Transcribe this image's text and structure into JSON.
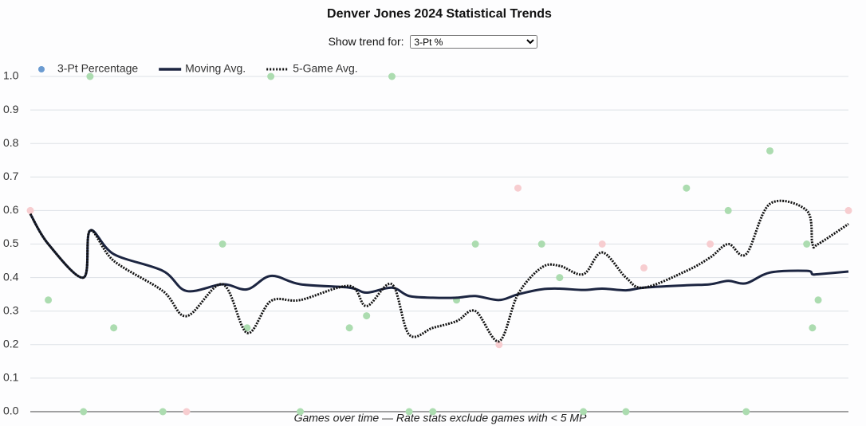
{
  "controls": {
    "label": "Show trend for:",
    "options": [
      "3-Pt %"
    ]
  },
  "chart_data": {
    "type": "line",
    "title": "Denver Jones 2024 Statistical Trends",
    "x_label": "Games over time — Rate stats exclude games with < 5 MP",
    "x": [
      0,
      2.2,
      6.5,
      7.3,
      10.2,
      16.2,
      19.1,
      23.5,
      26.5,
      29.4,
      33.0,
      39.0,
      41.1,
      44.2,
      46.3,
      49.2,
      52.1,
      54.4,
      57.3,
      59.6,
      62.5,
      64.7,
      67.6,
      69.9,
      72.8,
      75.0,
      80.2,
      83.1,
      85.3,
      87.5,
      90.4,
      94.9,
      95.6,
      96.3,
      100
    ],
    "xlim": [
      0,
      100
    ],
    "ylim": [
      0,
      1
    ],
    "yticks": [
      {
        "value": 0,
        "label": "0.0"
      },
      0.1,
      0.2,
      0.3,
      0.4,
      0.5,
      0.6,
      0.7,
      0.8,
      0.9,
      {
        "value": 1,
        "label": "1.0"
      }
    ],
    "grid": true,
    "legend": "top-left",
    "series": [
      {
        "name": "3-Pt Percentage",
        "mark": "scatter",
        "color": "#6b9bd1",
        "values": [
          0.6,
          0.333,
          0,
          1,
          0.25,
          0,
          0,
          0.5,
          0.25,
          1,
          0,
          0.25,
          0.286,
          1,
          0,
          0,
          0.333,
          0.5,
          0.2,
          0.667,
          0.5,
          0.4,
          0,
          0.5,
          0,
          0.429,
          0.667,
          0.5,
          0.6,
          0,
          0.778,
          0.5,
          0.25,
          0.333,
          0.6
        ],
        "point_colors": [
          "#f7cdd0",
          "#acdcb0",
          "#acdcb0",
          "#acdcb0",
          "#acdcb0",
          "#acdcb0",
          "#f7cdd0",
          "#acdcb0",
          "#acdcb0",
          "#acdcb0",
          "#acdcb0",
          "#acdcb0",
          "#acdcb0",
          "#acdcb0",
          "#acdcb0",
          "#acdcb0",
          "#acdcb0",
          "#acdcb0",
          "#f7cdd0",
          "#f7cdd0",
          "#acdcb0",
          "#acdcb0",
          "#acdcb0",
          "#f7cdd0",
          "#acdcb0",
          "#f7cdd0",
          "#acdcb0",
          "#f7cdd0",
          "#acdcb0",
          "#acdcb0",
          "#acdcb0",
          "#acdcb0",
          "#acdcb0",
          "#acdcb0",
          "#f7cdd0"
        ]
      },
      {
        "name": "Moving Avg.",
        "mark": "line",
        "color": "#1c2541",
        "dash": "solid",
        "values": [
          0.59,
          0.5,
          0.4,
          0.54,
          0.47,
          0.42,
          0.36,
          0.38,
          0.365,
          0.405,
          0.38,
          0.37,
          0.355,
          0.37,
          0.345,
          0.34,
          0.34,
          0.345,
          0.333,
          0.35,
          0.365,
          0.367,
          0.363,
          0.367,
          0.362,
          0.37,
          0.377,
          0.38,
          0.39,
          0.383,
          0.415,
          0.42,
          0.41,
          0.41,
          0.418
        ]
      },
      {
        "name": "5-Game Avg.",
        "mark": "line",
        "color": "#111111",
        "dash": "dotted",
        "values": [
          0.59,
          0.5,
          0.4,
          0.54,
          0.45,
          0.36,
          0.285,
          0.38,
          0.235,
          0.33,
          0.333,
          0.375,
          0.315,
          0.38,
          0.23,
          0.25,
          0.27,
          0.3,
          0.21,
          0.35,
          0.43,
          0.435,
          0.41,
          0.475,
          0.4,
          0.37,
          0.42,
          0.46,
          0.5,
          0.47,
          0.62,
          0.6,
          0.5,
          0.5,
          0.56
        ]
      }
    ]
  }
}
